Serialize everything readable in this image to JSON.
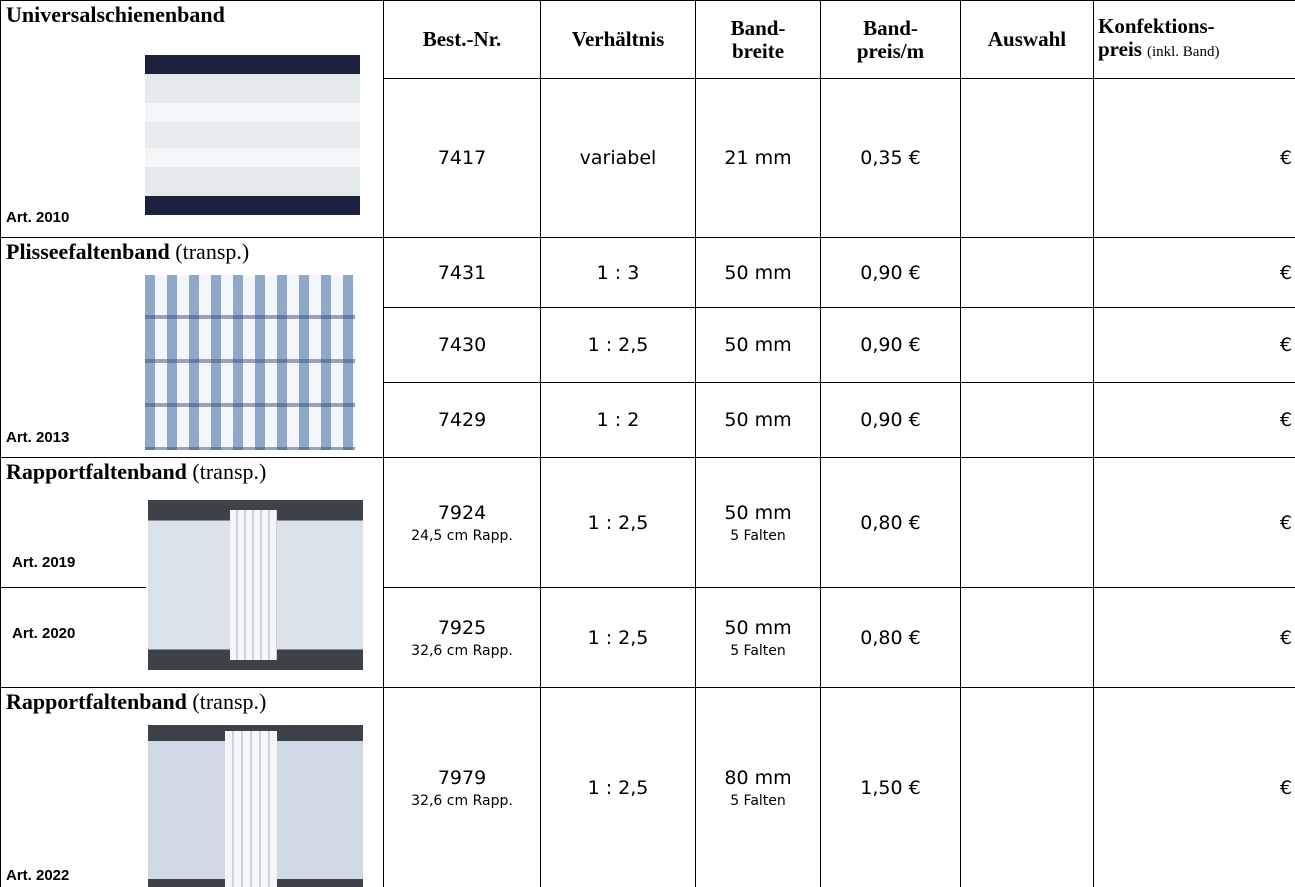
{
  "header": {
    "columns": [
      {
        "lines": [
          "Best.-Nr."
        ]
      },
      {
        "lines": [
          "Verhältnis"
        ]
      },
      {
        "lines": [
          "Band-",
          "breite"
        ]
      },
      {
        "lines": [
          "Band-",
          "preis/m"
        ]
      },
      {
        "lines": [
          "Auswahl"
        ]
      },
      {
        "lines": [
          "Konfektions-",
          "preis"
        ],
        "note": "(inkl. Band)"
      }
    ]
  },
  "groups": [
    {
      "title": "Universalschienenband",
      "arts": [
        "Art. 2010"
      ],
      "rows": [
        {
          "best_nr": "7417",
          "ratio": "variabel",
          "width": "21 mm",
          "price": "0,35 €",
          "konf": "€"
        }
      ]
    },
    {
      "title": "Plisseefaltenband",
      "note": "(transp.)",
      "arts": [
        "Art. 2013"
      ],
      "rows": [
        {
          "best_nr": "7431",
          "ratio": "1 : 3",
          "width": "50 mm",
          "price": "0,90 €",
          "konf": "€"
        },
        {
          "best_nr": "7430",
          "ratio": "1 : 2,5",
          "width": "50 mm",
          "price": "0,90 €",
          "konf": "€"
        },
        {
          "best_nr": "7429",
          "ratio": "1 : 2",
          "width": "50 mm",
          "price": "0,90 €",
          "konf": "€"
        }
      ]
    },
    {
      "title": "Rapportfaltenband",
      "note": "(transp.)",
      "arts": [
        "Art. 2019",
        "Art. 2020"
      ],
      "rows": [
        {
          "best_nr": "7924",
          "best_nr_sub": "24,5 cm Rapp.",
          "ratio": "1 : 2,5",
          "width": "50 mm",
          "width_sub": "5 Falten",
          "price": "0,80 €",
          "konf": "€"
        },
        {
          "best_nr": "7925",
          "best_nr_sub": "32,6 cm Rapp.",
          "ratio": "1 : 2,5",
          "width": "50 mm",
          "width_sub": "5 Falten",
          "price": "0,80 €",
          "konf": "€"
        }
      ]
    },
    {
      "title": "Rapportfaltenband",
      "note": "(transp.)",
      "arts": [
        "Art. 2022"
      ],
      "rows": [
        {
          "best_nr": "7979",
          "best_nr_sub": "32,6 cm Rapp.",
          "ratio": "1 : 2,5",
          "width": "80 mm",
          "width_sub": "5 Falten",
          "price": "1,50 €",
          "konf": "€"
        }
      ]
    }
  ]
}
